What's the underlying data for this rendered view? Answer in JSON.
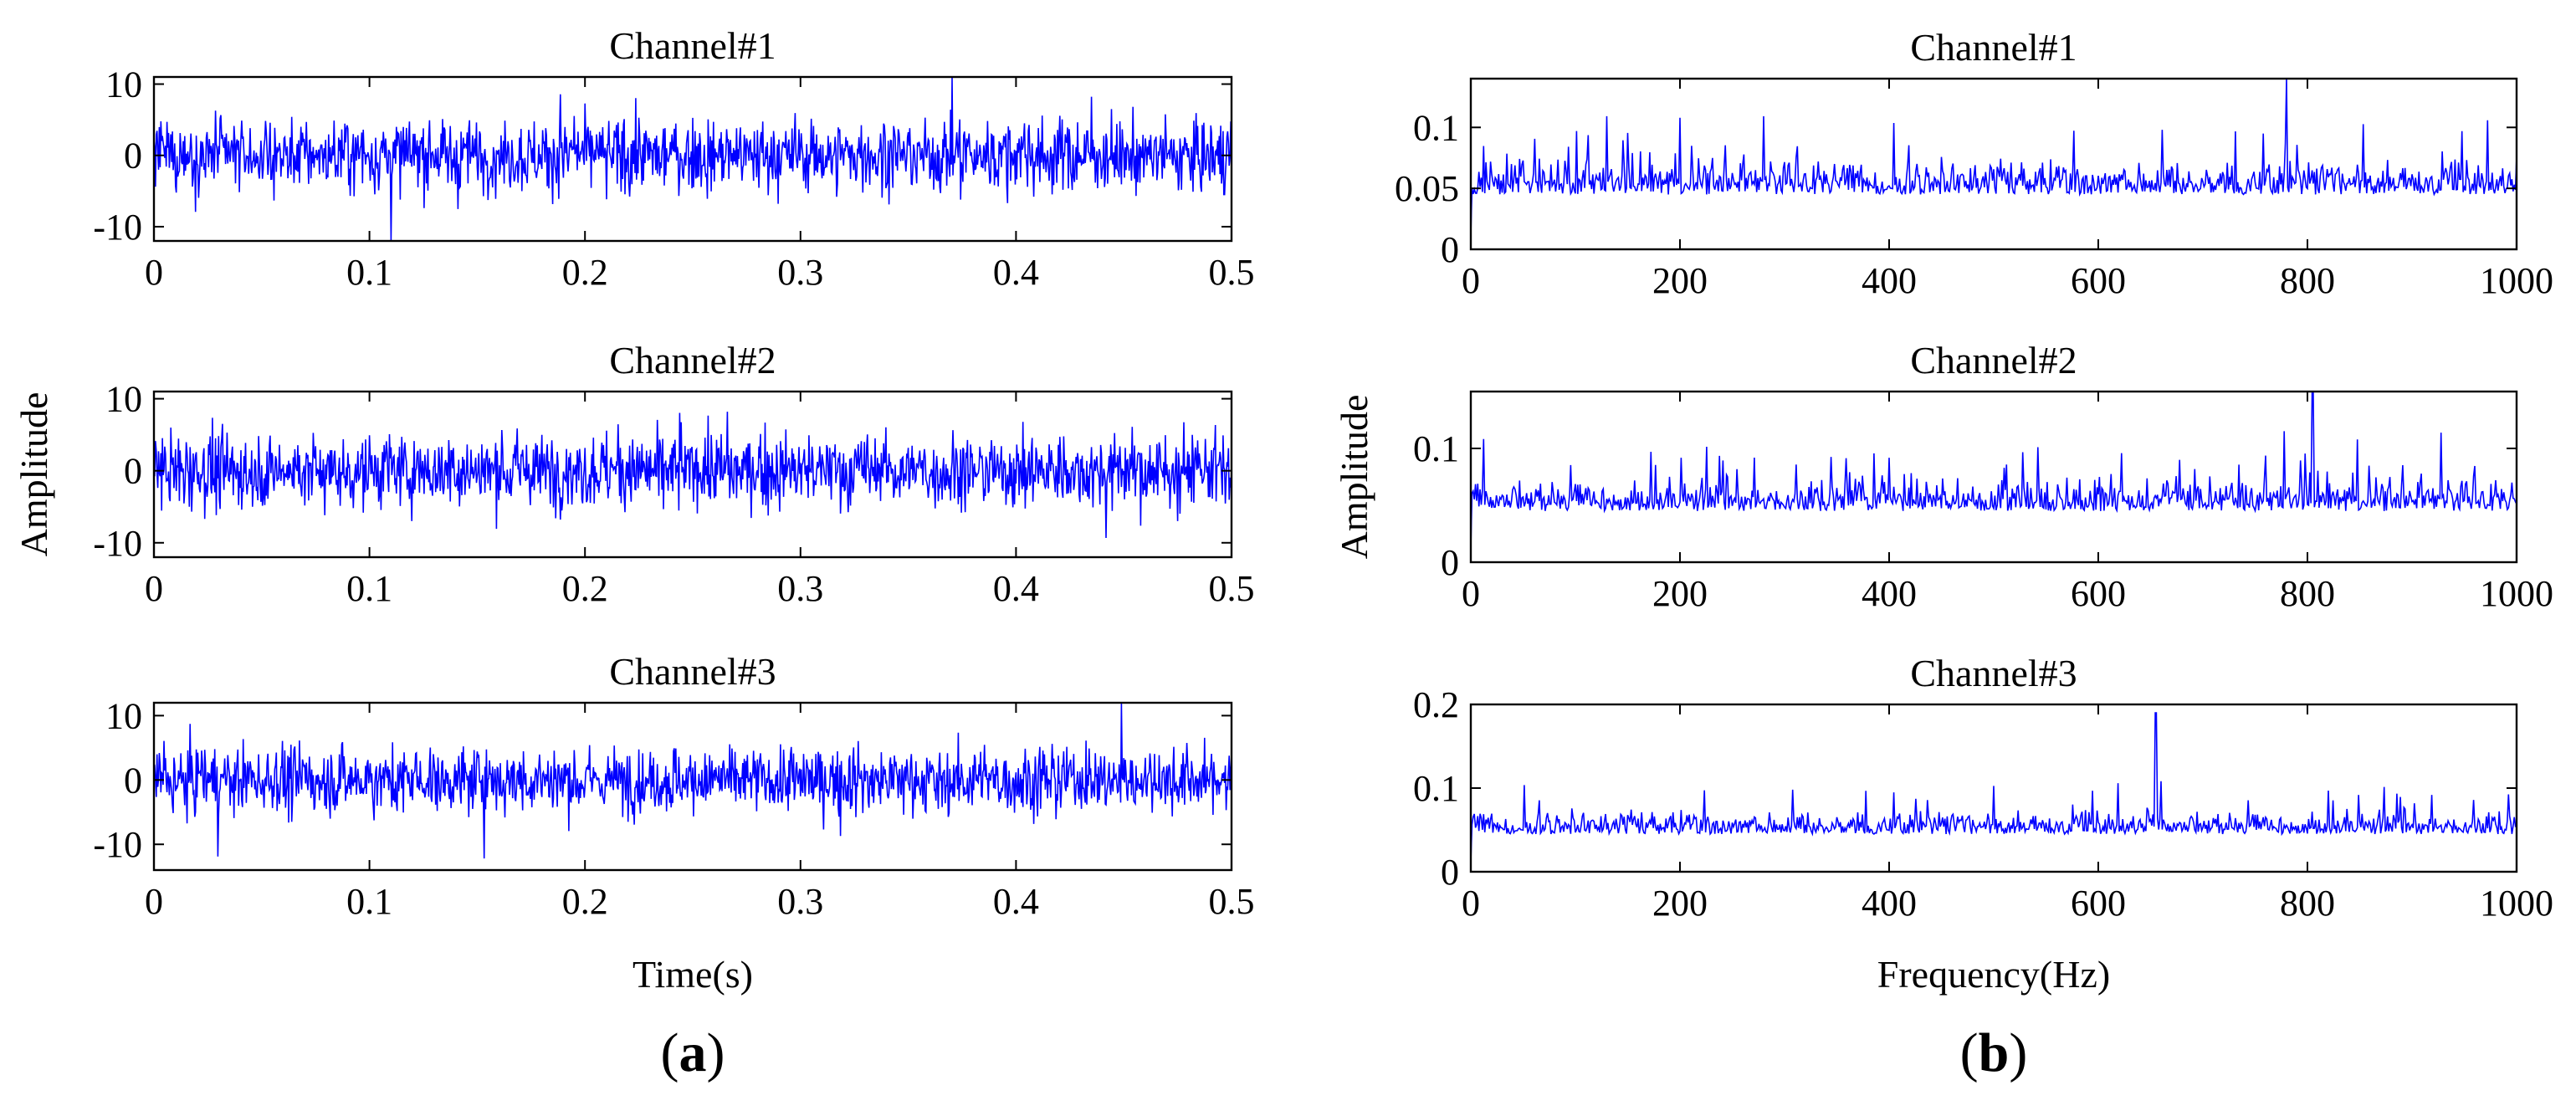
{
  "panels": [
    {
      "label_open": "(",
      "label_letter": "a",
      "label_close": ")",
      "xlabel": "Time(s)",
      "ylabel": "Amplitude",
      "subplots": [
        {
          "title": "Channel#1",
          "xticks": [
            "0",
            "0.1",
            "0.2",
            "0.3",
            "0.4",
            "0.5"
          ],
          "yticks": [
            "10",
            "0",
            "-10"
          ]
        },
        {
          "title": "Channel#2",
          "xticks": [
            "0",
            "0.1",
            "0.2",
            "0.3",
            "0.4",
            "0.5"
          ],
          "yticks": [
            "10",
            "0",
            "-10"
          ]
        },
        {
          "title": "Channel#3",
          "xticks": [
            "0",
            "0.1",
            "0.2",
            "0.3",
            "0.4",
            "0.5"
          ],
          "yticks": [
            "10",
            "0",
            "-10"
          ]
        }
      ]
    },
    {
      "label_open": "(",
      "label_letter": "b",
      "label_close": ")",
      "xlabel": "Frequency(Hz)",
      "ylabel": "Amplitude",
      "subplots": [
        {
          "title": "Channel#1",
          "xticks": [
            "0",
            "200",
            "400",
            "600",
            "800",
            "1000"
          ],
          "yticks": [
            "0.1",
            "0.05",
            "0"
          ]
        },
        {
          "title": "Channel#2",
          "xticks": [
            "0",
            "200",
            "400",
            "600",
            "800",
            "1000"
          ],
          "yticks": [
            "0.1",
            "0"
          ]
        },
        {
          "title": "Channel#3",
          "xticks": [
            "0",
            "200",
            "400",
            "600",
            "800",
            "1000"
          ],
          "yticks": [
            "0.2",
            "0.1",
            "0"
          ]
        }
      ]
    }
  ],
  "chart_data": [
    {
      "type": "line",
      "title": "Channel#1",
      "xlabel": "",
      "ylabel": "",
      "xlim": [
        0,
        0.5
      ],
      "ylim": [
        -12,
        11
      ],
      "xticks": [
        0,
        0.1,
        0.2,
        0.3,
        0.4,
        0.5
      ],
      "yticks": [
        -10,
        0,
        10
      ],
      "grid": false,
      "color": "#0000ff",
      "series": [
        {
          "note": "noise-like vibration signal, bounded approx. -12 to 11",
          "x_range": [
            0,
            0.5
          ],
          "y_range": [
            -12,
            11
          ]
        }
      ]
    },
    {
      "type": "line",
      "title": "Channel#2",
      "xlabel": "",
      "ylabel": "Amplitude",
      "xlim": [
        0,
        0.5
      ],
      "ylim": [
        -12,
        11
      ],
      "xticks": [
        0,
        0.1,
        0.2,
        0.3,
        0.4,
        0.5
      ],
      "yticks": [
        -10,
        0,
        10
      ],
      "grid": false,
      "color": "#0000ff",
      "series": [
        {
          "note": "noise-like vibration signal, bounded approx. -12 to 11",
          "x_range": [
            0,
            0.5
          ],
          "y_range": [
            -12,
            11
          ]
        }
      ]
    },
    {
      "type": "line",
      "title": "Channel#3",
      "xlabel": "Time(s)",
      "ylabel": "",
      "xlim": [
        0,
        0.5
      ],
      "ylim": [
        -14,
        12
      ],
      "xticks": [
        0,
        0.1,
        0.2,
        0.3,
        0.4,
        0.5
      ],
      "yticks": [
        -10,
        0,
        10
      ],
      "grid": false,
      "color": "#0000ff",
      "series": [
        {
          "note": "noise-like vibration signal, bounded approx. -14 to 12",
          "x_range": [
            0,
            0.5
          ],
          "y_range": [
            -14,
            12
          ]
        }
      ]
    },
    {
      "type": "line",
      "title": "Channel#1",
      "xlabel": "",
      "ylabel": "",
      "xlim": [
        0,
        1000
      ],
      "ylim": [
        0,
        0.14
      ],
      "xticks": [
        0,
        200,
        400,
        600,
        800,
        1000
      ],
      "yticks": [
        0,
        0.05,
        0.1
      ],
      "grid": false,
      "color": "#0000ff",
      "series": [
        {
          "note": "amplitude spectrum, mostly 0.01-0.09, peak approx. 0.14 near 780 Hz",
          "x_range": [
            0,
            1000
          ],
          "y_range": [
            0,
            0.14
          ]
        }
      ]
    },
    {
      "type": "line",
      "title": "Channel#2",
      "xlabel": "",
      "ylabel": "Amplitude",
      "xlim": [
        0,
        1000
      ],
      "ylim": [
        0,
        0.15
      ],
      "xticks": [
        0,
        200,
        400,
        600,
        800,
        1000
      ],
      "yticks": [
        0,
        0.1
      ],
      "grid": false,
      "color": "#0000ff",
      "series": [
        {
          "note": "amplitude spectrum, mostly 0.01-0.10, peak approx. 0.15 near 805 Hz",
          "x_range": [
            0,
            1000
          ],
          "y_range": [
            0,
            0.15
          ]
        }
      ]
    },
    {
      "type": "line",
      "title": "Channel#3",
      "xlabel": "Frequency(Hz)",
      "ylabel": "",
      "xlim": [
        0,
        1000
      ],
      "ylim": [
        0,
        0.2
      ],
      "xticks": [
        0,
        200,
        400,
        600,
        800,
        1000
      ],
      "yticks": [
        0,
        0.1,
        0.2
      ],
      "grid": false,
      "color": "#0000ff",
      "series": [
        {
          "note": "amplitude spectrum, mostly 0.01-0.10, peak approx. 0.19 near 655 Hz",
          "x_range": [
            0,
            1000
          ],
          "y_range": [
            0,
            0.19
          ]
        }
      ]
    }
  ]
}
